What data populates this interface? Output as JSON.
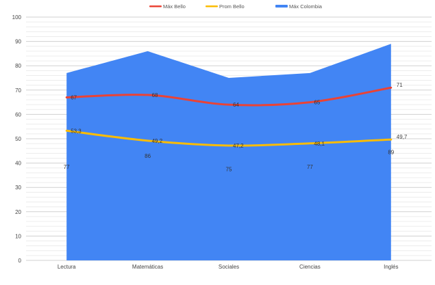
{
  "chart_data": {
    "type": "line",
    "title": "",
    "xlabel": "",
    "ylabel": "",
    "ylim": [
      0,
      100
    ],
    "y_ticks": [
      "0",
      "10",
      "20",
      "30",
      "40",
      "50",
      "60",
      "70",
      "80",
      "90",
      "100"
    ],
    "grid": true,
    "legend_position": "top-center",
    "categories": [
      "Lectura",
      "Matemáticas",
      "Sociales",
      "Ciencias",
      "Inglés"
    ],
    "series": [
      {
        "name": "Máx Colombia",
        "kind": "area",
        "color": "#4285f4",
        "values": [
          77,
          86,
          75,
          77,
          89
        ],
        "labels": [
          "77",
          "86",
          "75",
          "77",
          "89"
        ]
      },
      {
        "name": "Máx Bello",
        "kind": "smooth-line",
        "color": "#ea4335",
        "values": [
          67,
          68,
          64,
          65,
          71
        ],
        "labels": [
          "67",
          "68",
          "64",
          "65",
          "71"
        ]
      },
      {
        "name": "Prom Bello",
        "kind": "smooth-line",
        "color": "#fbbc04",
        "values": [
          53.3,
          49.2,
          47.2,
          48.1,
          49.7
        ],
        "labels": [
          "53,3",
          "49,2",
          "47,2",
          "48,1",
          "49,7"
        ]
      }
    ],
    "legend": [
      "Máx Bello",
      "Prom Bello",
      "Máx Colombia"
    ]
  }
}
